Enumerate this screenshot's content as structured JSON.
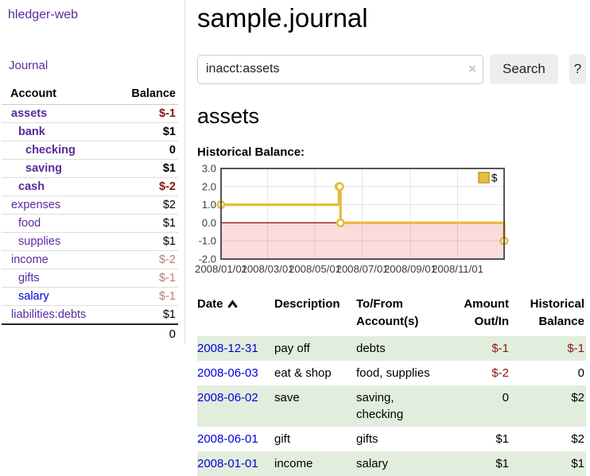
{
  "colors": {
    "accent_purple": "#5b2a9d",
    "link_blue": "#0000e0",
    "negative_strong": "#8b1414",
    "negative_soft": "#bb7a7a",
    "row_highlight_green": "#e2eedd",
    "chart_line_yellow": "#e8bb3d",
    "chart_negative_fill": "#fadcdc",
    "chart_zero_line": "#a80000",
    "chart_border": "#545454"
  },
  "app": {
    "title": "hledger-web",
    "nav_journal": "Journal"
  },
  "sidebar": {
    "headers": {
      "account": "Account",
      "balance": "Balance"
    },
    "accounts": [
      {
        "name": "assets",
        "balance": "$-1",
        "indent": 1,
        "bold": true,
        "amount_class": "neg-strong"
      },
      {
        "name": "bank",
        "balance": "$1",
        "indent": 2,
        "bold": true,
        "amount_class": ""
      },
      {
        "name": "checking",
        "balance": "0",
        "indent": 3,
        "bold": true,
        "amount_class": ""
      },
      {
        "name": "saving",
        "balance": "$1",
        "indent": 3,
        "bold": true,
        "amount_class": ""
      },
      {
        "name": "cash",
        "balance": "$-2",
        "indent": 2,
        "bold": true,
        "amount_class": "neg-strong"
      },
      {
        "name": "expenses",
        "balance": "$2",
        "indent": 1,
        "bold": false,
        "amount_class": ""
      },
      {
        "name": "food",
        "balance": "$1",
        "indent": 2,
        "bold": false,
        "amount_class": ""
      },
      {
        "name": "supplies",
        "balance": "$1",
        "indent": 2,
        "bold": false,
        "amount_class": ""
      },
      {
        "name": "income",
        "balance": "$-2",
        "indent": 1,
        "bold": false,
        "amount_class": "neg-soft"
      },
      {
        "name": "gifts",
        "balance": "$-1",
        "indent": 2,
        "bold": false,
        "amount_class": "neg-soft"
      },
      {
        "name": "salary",
        "balance": "$-1",
        "indent": 2,
        "bold": false,
        "amount_class": "neg-soft",
        "link": "blue"
      },
      {
        "name": "liabilities:debts",
        "balance": "$1",
        "indent": 1,
        "bold": false,
        "amount_class": ""
      }
    ],
    "total": "0"
  },
  "header": {
    "title": "sample.journal"
  },
  "search": {
    "value": "inacct:assets",
    "clear_label": "×",
    "button_label": "Search",
    "help_label": "?"
  },
  "account_page": {
    "heading": "assets",
    "chart_label": "Historical Balance:"
  },
  "chart_data": {
    "type": "line",
    "title": "Historical Balance",
    "step": true,
    "series": [
      {
        "name": "$",
        "color": "#e8bb3d",
        "points": [
          [
            "2008-01-01",
            1
          ],
          [
            "2008-06-01",
            2
          ],
          [
            "2008-06-02",
            2
          ],
          [
            "2008-06-03",
            0
          ],
          [
            "2008-12-31",
            -1
          ]
        ]
      }
    ],
    "x_range": [
      "2008-01-01",
      "2008-12-31"
    ],
    "x_ticks": [
      "2008/01/01",
      "2008/03/01",
      "2008/05/01",
      "2008/07/01",
      "2008/09/01",
      "2008/11/01"
    ],
    "ylim": [
      -2,
      3
    ],
    "y_ticks": [
      "3.0",
      "2.0",
      "1.0",
      "0.0",
      "-1.0",
      "-2.0"
    ],
    "legend": {
      "position": "top-right",
      "label": "$"
    },
    "grid": true,
    "negative_region_color": "#fadcdc",
    "zero_line_color": "#a80000"
  },
  "transactions": {
    "headers": {
      "date": "Date",
      "description": "Description",
      "tofrom": "To/From Account(s)",
      "amount": "Amount Out/In",
      "balance": "Historical Balance"
    },
    "sort": {
      "column": "date",
      "direction": "ascending"
    },
    "rows": [
      {
        "date": "2008-12-31",
        "description": "pay off",
        "tofrom": "debts",
        "amount": "$-1",
        "amount_negative": true,
        "balance": "$-1",
        "balance_negative": true,
        "highlight": true
      },
      {
        "date": "2008-06-03",
        "description": "eat & shop",
        "tofrom": "food, supplies",
        "amount": "$-2",
        "amount_negative": true,
        "balance": "0",
        "balance_negative": false,
        "highlight": false
      },
      {
        "date": "2008-06-02",
        "description": "save",
        "tofrom": "saving, checking",
        "amount": "0",
        "amount_negative": false,
        "balance": "$2",
        "balance_negative": false,
        "highlight": true
      },
      {
        "date": "2008-06-01",
        "description": "gift",
        "tofrom": "gifts",
        "amount": "$1",
        "amount_negative": false,
        "balance": "$2",
        "balance_negative": false,
        "highlight": false
      },
      {
        "date": "2008-01-01",
        "description": "income",
        "tofrom": "salary",
        "amount": "$1",
        "amount_negative": false,
        "balance": "$1",
        "balance_negative": false,
        "highlight": true
      }
    ]
  }
}
